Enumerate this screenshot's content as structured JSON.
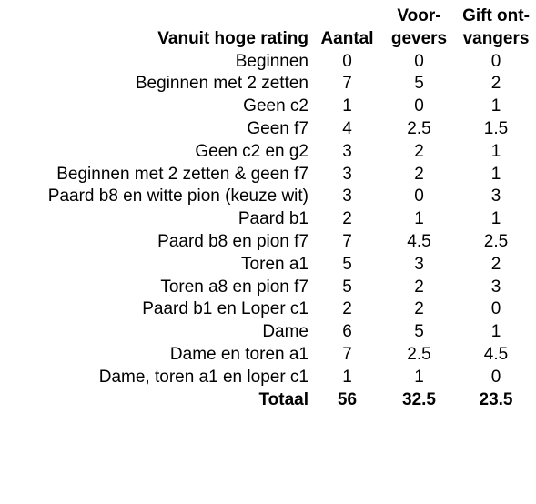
{
  "headers": {
    "row_label": "Vanuit hoge rating",
    "aantal": "Aantal",
    "voorgevers_line1": "Voor-",
    "voorgevers_line2": "gevers",
    "gift_line1": "Gift ont-",
    "gift_line2": "vangers"
  },
  "rows": [
    {
      "label": "Beginnen",
      "aantal": "0",
      "voorgevers": "0",
      "giftontvangers": "0"
    },
    {
      "label": "Beginnen met 2 zetten",
      "aantal": "7",
      "voorgevers": "5",
      "giftontvangers": "2"
    },
    {
      "label": "Geen c2",
      "aantal": "1",
      "voorgevers": "0",
      "giftontvangers": "1"
    },
    {
      "label": "Geen f7",
      "aantal": "4",
      "voorgevers": "2.5",
      "giftontvangers": "1.5"
    },
    {
      "label": "Geen c2 en g2",
      "aantal": "3",
      "voorgevers": "2",
      "giftontvangers": "1"
    },
    {
      "label": "Beginnen met 2 zetten & geen f7",
      "aantal": "3",
      "voorgevers": "2",
      "giftontvangers": "1"
    },
    {
      "label": "Paard b8 en witte pion (keuze wit)",
      "aantal": "3",
      "voorgevers": "0",
      "giftontvangers": "3"
    },
    {
      "label": "Paard b1",
      "aantal": "2",
      "voorgevers": "1",
      "giftontvangers": "1"
    },
    {
      "label": "Paard b8 en pion f7",
      "aantal": "7",
      "voorgevers": "4.5",
      "giftontvangers": "2.5"
    },
    {
      "label": "Toren a1",
      "aantal": "5",
      "voorgevers": "3",
      "giftontvangers": "2"
    },
    {
      "label": "Toren a8 en pion f7",
      "aantal": "5",
      "voorgevers": "2",
      "giftontvangers": "3"
    },
    {
      "label": "Paard b1 en Loper c1",
      "aantal": "2",
      "voorgevers": "2",
      "giftontvangers": "0"
    },
    {
      "label": "Dame",
      "aantal": "6",
      "voorgevers": "5",
      "giftontvangers": "1"
    },
    {
      "label": "Dame en toren a1",
      "aantal": "7",
      "voorgevers": "2.5",
      "giftontvangers": "4.5"
    },
    {
      "label": "Dame, toren a1 en loper c1",
      "aantal": "1",
      "voorgevers": "1",
      "giftontvangers": "0"
    }
  ],
  "total": {
    "label": "Totaal",
    "aantal": "56",
    "voorgevers": "32.5",
    "giftontvangers": "23.5"
  }
}
